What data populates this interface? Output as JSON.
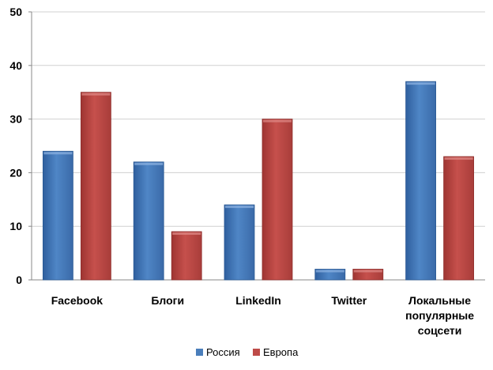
{
  "chart_data": {
    "type": "bar",
    "title": "",
    "xlabel": "",
    "ylabel": "",
    "ylim": [
      0,
      50
    ],
    "yticks": [
      0,
      10,
      20,
      30,
      40,
      50
    ],
    "grid": true,
    "legend_position": "bottom",
    "categories": [
      [
        "Facebook"
      ],
      [
        "Блоги"
      ],
      [
        "LinkedIn"
      ],
      [
        "Twitter"
      ],
      [
        "Локальные",
        "популярные",
        "соцсети"
      ]
    ],
    "series": [
      {
        "name": "Россия",
        "color": "#4a7ebb",
        "values": [
          24,
          22,
          14,
          2,
          37
        ]
      },
      {
        "name": "Европа",
        "color": "#be4b48",
        "values": [
          35,
          9,
          30,
          2,
          23
        ]
      }
    ]
  }
}
